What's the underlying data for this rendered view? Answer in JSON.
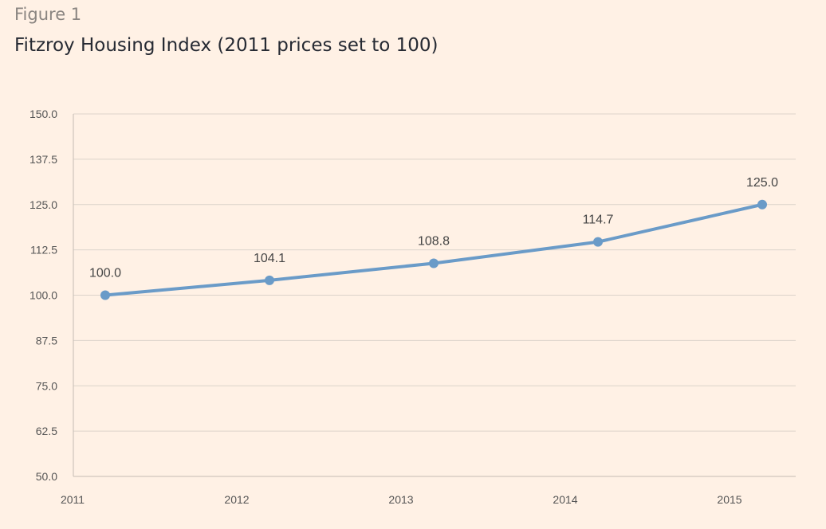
{
  "figure": {
    "label": "Figure 1",
    "title": "Fitzroy Housing Index (2011 prices set to 100)"
  },
  "chart_data": {
    "type": "line",
    "title": "Fitzroy Housing Index (2011 prices set to 100)",
    "xlabel": "",
    "ylabel": "",
    "categories": [
      "2011",
      "2012",
      "2013",
      "2014",
      "2015"
    ],
    "series": [
      {
        "values": [
          100.0,
          104.1,
          108.8,
          114.7,
          125.0
        ],
        "data_labels": [
          "100.0",
          "104.1",
          "108.8",
          "114.7",
          "125.0"
        ]
      }
    ],
    "ylim": [
      50.0,
      150.0
    ],
    "yticks": [
      "150.0",
      "137.5",
      "125.0",
      "112.5",
      "100.0",
      "87.5",
      "75.0",
      "62.5",
      "50.0"
    ],
    "grid": true,
    "legend": "none",
    "colors": {
      "line": "#6a9bc8",
      "grid": "#dcd3ca",
      "axis": "#c4bcb4",
      "tick_text": "#555555",
      "data_label": "#444444"
    }
  }
}
